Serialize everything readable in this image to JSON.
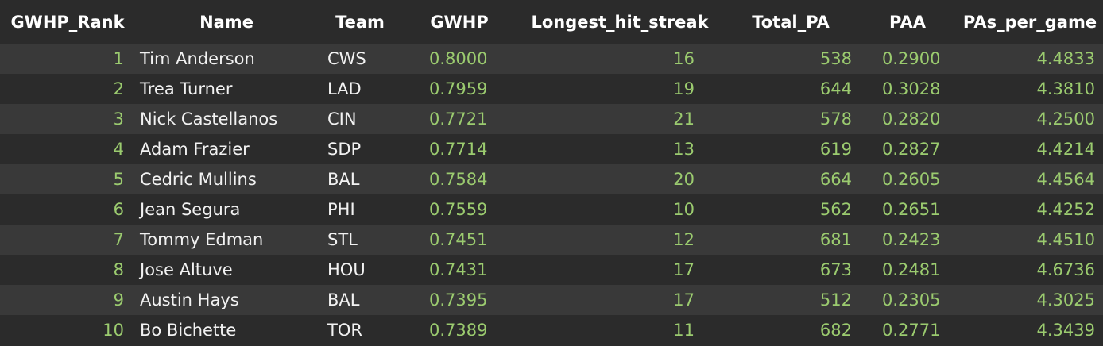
{
  "columns": [
    "GWHP_Rank",
    "Name",
    "Team",
    "GWHP",
    "Longest_hit_streak",
    "Total_PA",
    "PAA",
    "PAs_per_game"
  ],
  "rows": [
    {
      "rank": "1",
      "name": "Tim Anderson",
      "team": "CWS",
      "gwhp": "0.8000",
      "streak": "16",
      "pa": "538",
      "paa": "0.2900",
      "ppg": "4.4833"
    },
    {
      "rank": "2",
      "name": "Trea Turner",
      "team": "LAD",
      "gwhp": "0.7959",
      "streak": "19",
      "pa": "644",
      "paa": "0.3028",
      "ppg": "4.3810"
    },
    {
      "rank": "3",
      "name": "Nick Castellanos",
      "team": "CIN",
      "gwhp": "0.7721",
      "streak": "21",
      "pa": "578",
      "paa": "0.2820",
      "ppg": "4.2500"
    },
    {
      "rank": "4",
      "name": "Adam Frazier",
      "team": "SDP",
      "gwhp": "0.7714",
      "streak": "13",
      "pa": "619",
      "paa": "0.2827",
      "ppg": "4.4214"
    },
    {
      "rank": "5",
      "name": "Cedric Mullins",
      "team": "BAL",
      "gwhp": "0.7584",
      "streak": "20",
      "pa": "664",
      "paa": "0.2605",
      "ppg": "4.4564"
    },
    {
      "rank": "6",
      "name": "Jean Segura",
      "team": "PHI",
      "gwhp": "0.7559",
      "streak": "10",
      "pa": "562",
      "paa": "0.2651",
      "ppg": "4.4252"
    },
    {
      "rank": "7",
      "name": "Tommy Edman",
      "team": "STL",
      "gwhp": "0.7451",
      "streak": "12",
      "pa": "681",
      "paa": "0.2423",
      "ppg": "4.4510"
    },
    {
      "rank": "8",
      "name": "Jose Altuve",
      "team": "HOU",
      "gwhp": "0.7431",
      "streak": "17",
      "pa": "673",
      "paa": "0.2481",
      "ppg": "4.6736"
    },
    {
      "rank": "9",
      "name": "Austin Hays",
      "team": "BAL",
      "gwhp": "0.7395",
      "streak": "17",
      "pa": "512",
      "paa": "0.2305",
      "ppg": "4.3025"
    },
    {
      "rank": "10",
      "name": "Bo Bichette",
      "team": "TOR",
      "gwhp": "0.7389",
      "streak": "11",
      "pa": "682",
      "paa": "0.2771",
      "ppg": "4.3439"
    }
  ],
  "colors": {
    "background": "#2b2b2b",
    "stripe": "#393939",
    "header_text": "#ffffff",
    "numeric_text": "#9bcb6f",
    "string_text": "#f2f2f2"
  }
}
